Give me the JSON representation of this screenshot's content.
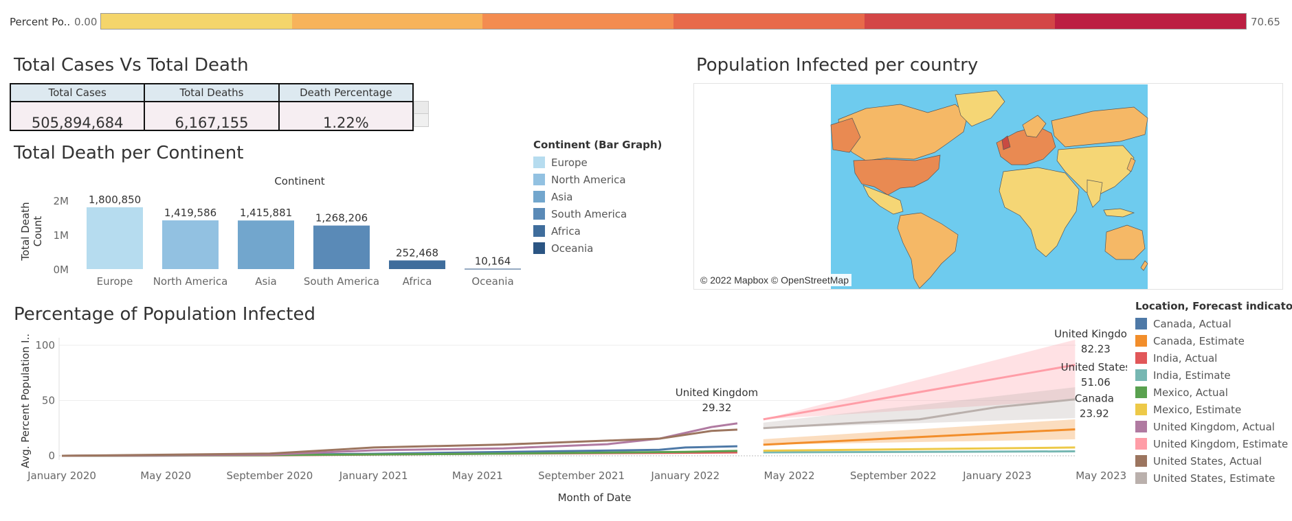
{
  "color_legend": {
    "label": "Percent Po..",
    "min": "0.00",
    "max": "70.65",
    "colors": [
      "#f4d56b",
      "#f7b35a",
      "#f38c50",
      "#e86a4a",
      "#d34646",
      "#bc1f42"
    ]
  },
  "kpi": {
    "title": "Total Cases Vs Total Death",
    "headers": [
      "Total Cases",
      "Total Deaths",
      "Death Percentage"
    ],
    "values": [
      "505,894,684",
      "6,167,155",
      "1.22%"
    ]
  },
  "continent_chart": {
    "title": "Total Death per Continent",
    "chart_data": {
      "type": "bar",
      "header": "Continent",
      "ylabel": "Total Death Count",
      "categories": [
        "Europe",
        "North America",
        "Asia",
        "South America",
        "Africa",
        "Oceania"
      ],
      "values": [
        1800850,
        1419586,
        1415881,
        1268206,
        252468,
        10164
      ],
      "value_labels": [
        "1,800,850",
        "1,419,586",
        "1,415,881",
        "1,268,206",
        "252,468",
        "10,164"
      ],
      "yticks": [
        "2M",
        "1M",
        "0M"
      ],
      "ytick_values": [
        2000000,
        1000000,
        0
      ],
      "ylim": [
        0,
        2000000
      ],
      "colors": [
        "#b6dcef",
        "#92c1e1",
        "#72a6cd",
        "#5a8ab7",
        "#3f6d9c",
        "#2b5583"
      ]
    },
    "legend_title": "Continent (Bar Graph)"
  },
  "map": {
    "title": "Population Infected per country",
    "attribution": "© 2022 Mapbox © OpenStreetMap",
    "ocean_color": "#6ecbee"
  },
  "line_chart": {
    "title": "Percentage of Population Infected",
    "chart_data": {
      "type": "line",
      "xlabel": "Month of Date",
      "ylabel": "Avg. Percent Population I..",
      "ylim": [
        0,
        100
      ],
      "yticks": [
        "100",
        "50",
        "0"
      ],
      "ytick_values": [
        100,
        50,
        0
      ],
      "xlim": [
        "2020-01",
        "2023-06"
      ],
      "xticks": [
        "January 2020",
        "May 2020",
        "September 2020",
        "January 2021",
        "May 2021",
        "September 2021",
        "January 2022",
        "May 2022",
        "September 2022",
        "January 2023",
        "May 2023"
      ],
      "xtick_dates": [
        "2020-01",
        "2020-05",
        "2020-09",
        "2021-01",
        "2021-05",
        "2021-09",
        "2022-01",
        "2022-05",
        "2022-09",
        "2023-01",
        "2023-05"
      ],
      "series": [
        {
          "name": "Canada, Actual",
          "color": "#4e79a7",
          "x": [
            "2020-01",
            "2020-06",
            "2021-01",
            "2021-06",
            "2021-12",
            "2022-01",
            "2022-03"
          ],
          "y": [
            0,
            0.3,
            1.8,
            3.5,
            5.4,
            7.5,
            8.6
          ]
        },
        {
          "name": "Canada, Estimate",
          "color": "#f28e2b",
          "x": [
            "2022-04",
            "2023-04"
          ],
          "y": [
            10,
            23.92
          ],
          "band": [
            [
              10,
              10
            ],
            [
              15,
              33
            ]
          ]
        },
        {
          "name": "India, Actual",
          "color": "#e15759",
          "x": [
            "2020-01",
            "2020-09",
            "2021-05",
            "2022-01",
            "2022-03"
          ],
          "y": [
            0,
            0.4,
            1.8,
            2.7,
            3
          ]
        },
        {
          "name": "India, Estimate",
          "color": "#76b7b2",
          "x": [
            "2022-04",
            "2023-04"
          ],
          "y": [
            3.1,
            4
          ]
        },
        {
          "name": "Mexico, Actual",
          "color": "#59a14f",
          "x": [
            "2020-01",
            "2020-09",
            "2021-05",
            "2022-01",
            "2022-03"
          ],
          "y": [
            0,
            0.6,
            1.8,
            3.6,
            4.4
          ]
        },
        {
          "name": "Mexico, Estimate",
          "color": "#edc948",
          "x": [
            "2022-04",
            "2023-04"
          ],
          "y": [
            4.6,
            7.5
          ]
        },
        {
          "name": "United Kingdom, Actual",
          "color": "#b07aa1",
          "x": [
            "2020-01",
            "2020-09",
            "2021-01",
            "2021-06",
            "2021-10",
            "2021-12",
            "2022-02",
            "2022-03"
          ],
          "y": [
            0,
            1,
            5,
            6.7,
            10.5,
            15.5,
            26,
            29.32
          ]
        },
        {
          "name": "United Kingdom, Estimate",
          "color": "#ff9da7",
          "x": [
            "2022-04",
            "2023-04"
          ],
          "y": [
            33,
            82.23
          ],
          "band": [
            [
              33,
              33
            ],
            [
              33,
              105
            ]
          ]
        },
        {
          "name": "United States, Actual",
          "color": "#9c755f",
          "x": [
            "2020-01",
            "2020-09",
            "2021-01",
            "2021-06",
            "2021-12",
            "2022-02",
            "2022-03"
          ],
          "y": [
            0,
            2,
            7.5,
            10.2,
            15.5,
            22.5,
            23.7
          ]
        },
        {
          "name": "United States, Estimate",
          "color": "#bab0ac",
          "x": [
            "2022-04",
            "2022-10",
            "2023-01",
            "2023-04"
          ],
          "y": [
            25,
            33,
            44,
            51.06
          ],
          "band": [
            [
              25,
              25
            ],
            [
              30,
              62
            ]
          ]
        }
      ],
      "annotations": [
        {
          "label": "United Kingdom",
          "value": "29.32"
        },
        {
          "label": "United Kingdom",
          "value": "82.23"
        },
        {
          "label": "United States",
          "value": "51.06"
        },
        {
          "label": "Canada",
          "value": "23.92"
        }
      ]
    },
    "legend_title": "Location, Forecast indicator"
  }
}
